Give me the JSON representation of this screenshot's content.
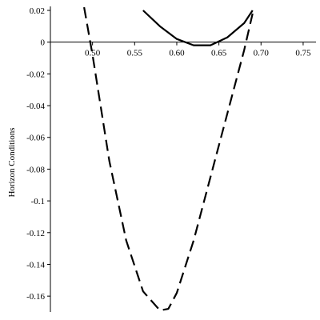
{
  "chart_data": {
    "type": "line",
    "y_label": "Horizon Conditions",
    "xlim": [
      0.45,
      0.77
    ],
    "ylim": [
      -0.17,
      0.02
    ],
    "xticks": [
      {
        "value": 0.5,
        "label": "0.50"
      },
      0.55,
      {
        "value": 0.6,
        "label": "0.60"
      },
      0.65,
      {
        "value": 0.7,
        "label": "0.70"
      },
      0.75
    ],
    "yticks": [
      0.02,
      0,
      -0.02,
      -0.04,
      -0.06,
      -0.08,
      -0.1,
      -0.12,
      -0.14,
      -0.16
    ],
    "series": [
      {
        "color": "#000000",
        "dashed": true,
        "x": [
          0.49,
          0.5,
          0.52,
          0.54,
          0.56,
          0.58,
          0.59,
          0.6,
          0.62,
          0.64,
          0.66,
          0.68,
          0.69
        ],
        "values": [
          0.022,
          -0.008,
          -0.075,
          -0.125,
          -0.157,
          -0.169,
          -0.168,
          -0.158,
          -0.125,
          -0.085,
          -0.045,
          -0.005,
          0.018
        ]
      },
      {
        "color": "#000000",
        "dashed": false,
        "x": [
          0.56,
          0.58,
          0.6,
          0.62,
          0.64,
          0.66,
          0.68,
          0.69
        ],
        "values": [
          0.02,
          0.01,
          0.002,
          -0.002,
          -0.002,
          0.003,
          0.012,
          0.02
        ]
      }
    ]
  }
}
